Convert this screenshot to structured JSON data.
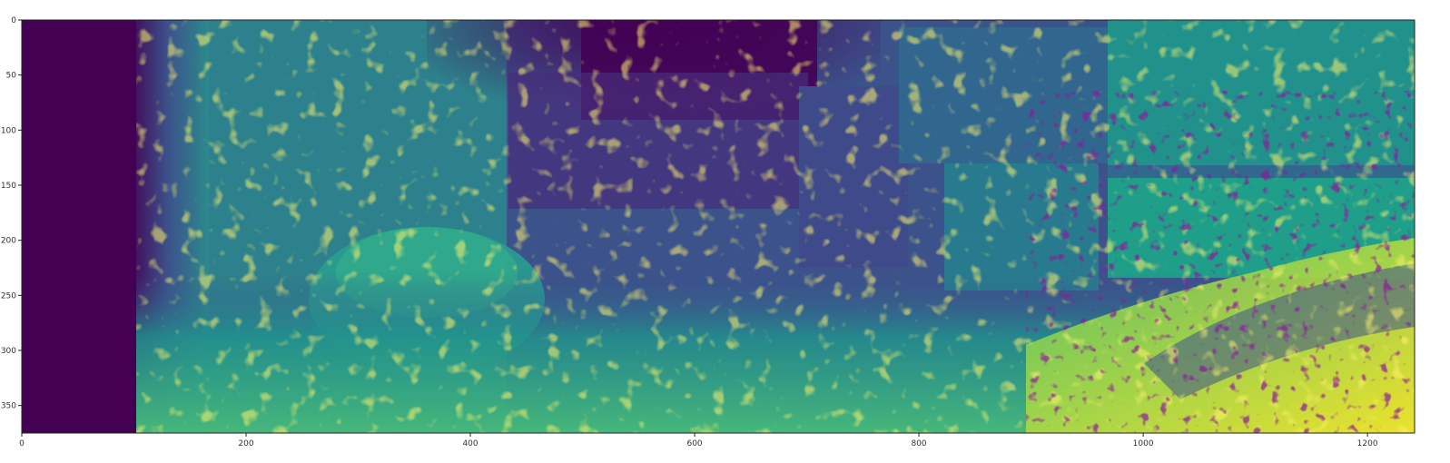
{
  "chart_data": {
    "type": "heatmap",
    "title": "",
    "xlabel": "",
    "ylabel": "",
    "colormap": "viridis",
    "colormap_colors": [
      "#440154",
      "#3b528b",
      "#21918c",
      "#5ec962",
      "#fde725"
    ],
    "xlim": [
      0,
      1242
    ],
    "ylim": [
      375,
      0
    ],
    "x_ticks": [
      0,
      200,
      400,
      600,
      800,
      1000,
      1200
    ],
    "x_tick_labels": [
      "0",
      "200",
      "400",
      "600",
      "800",
      "1000",
      "1200"
    ],
    "y_ticks": [
      0,
      50,
      100,
      150,
      200,
      250,
      300,
      350
    ],
    "y_tick_labels": [
      "0",
      "50",
      "100",
      "150",
      "200",
      "250",
      "300",
      "350"
    ],
    "grid": false,
    "colorbar": false
  }
}
